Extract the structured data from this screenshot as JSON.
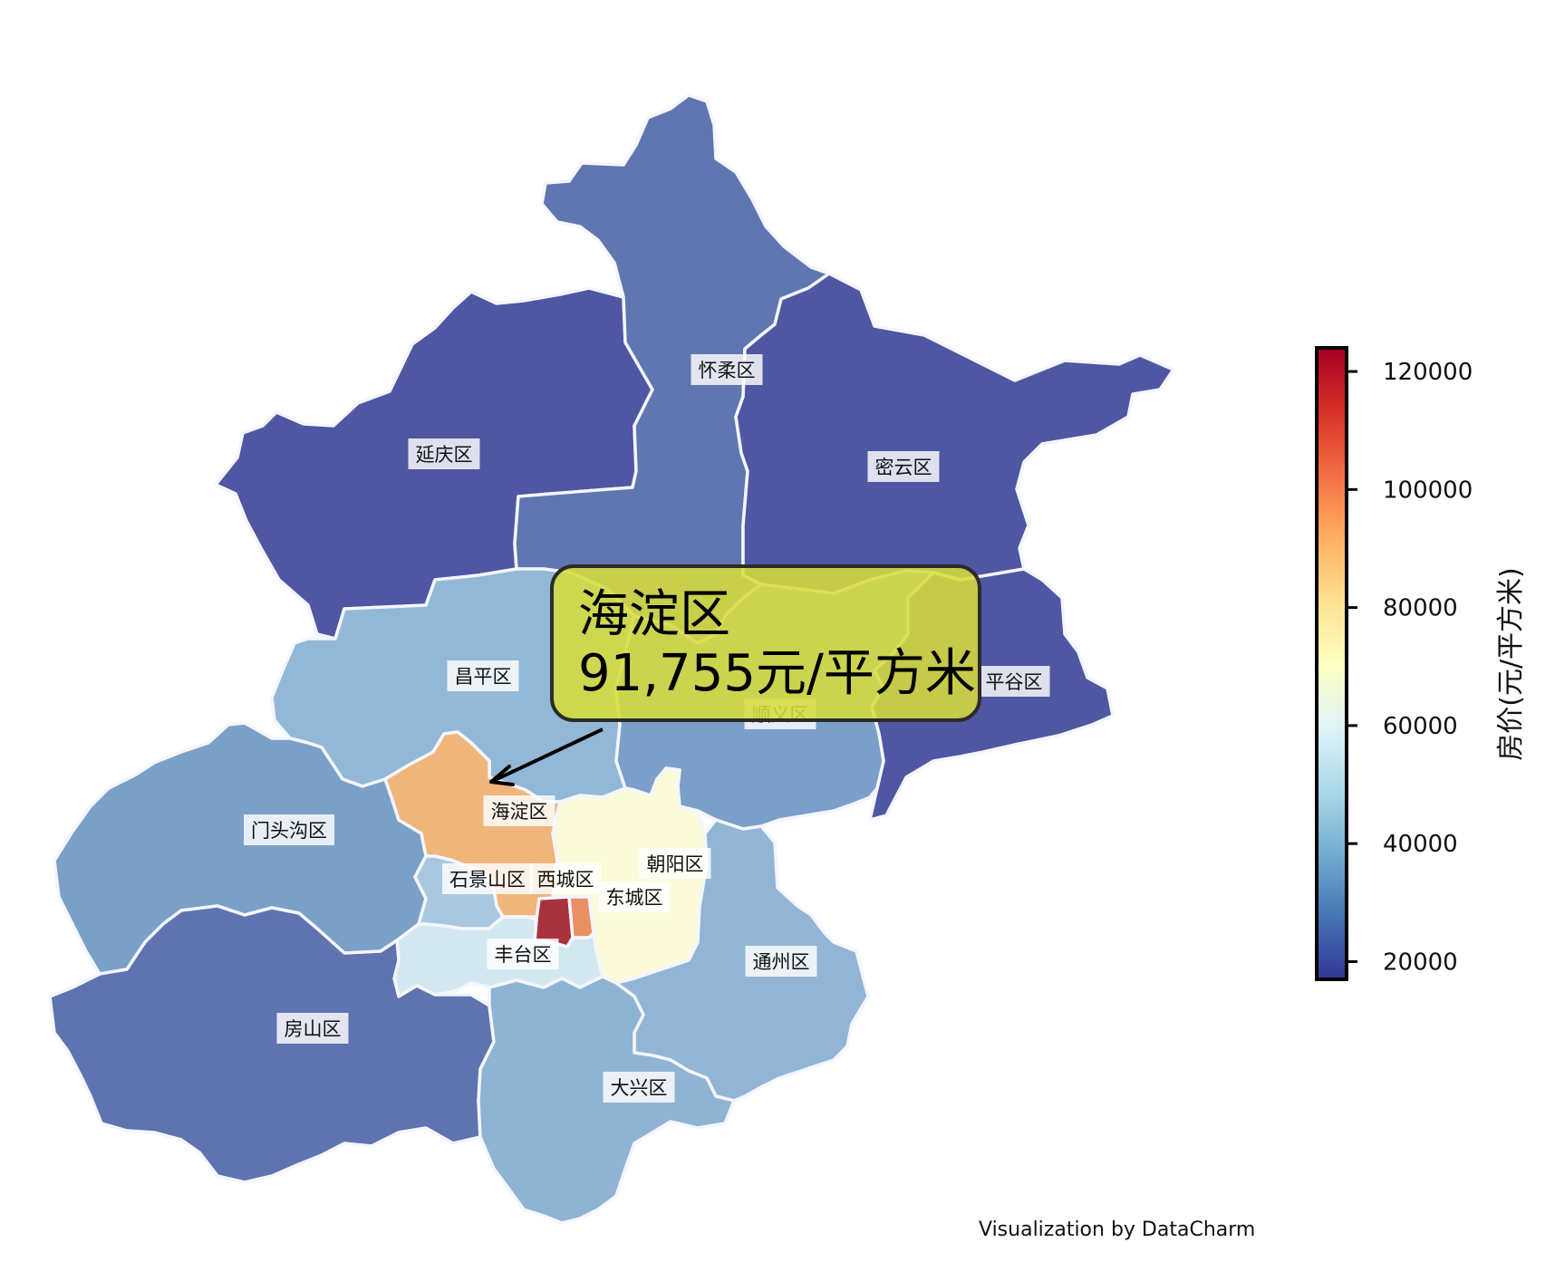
{
  "map": {
    "region": "北京",
    "districts": [
      {
        "id": "yanqing",
        "name": "延庆区",
        "color": "#4f56a2"
      },
      {
        "id": "huairou",
        "name": "怀柔区",
        "color": "#5f76b1"
      },
      {
        "id": "miyun",
        "name": "密云区",
        "color": "#4f56a2"
      },
      {
        "id": "pinggu",
        "name": "平谷区",
        "color": "#4f56a2"
      },
      {
        "id": "changping",
        "name": "昌平区",
        "color": "#93b8d6"
      },
      {
        "id": "shunyi",
        "name": "顺义区",
        "color": "#7b9fc9"
      },
      {
        "id": "mentougou",
        "name": "门头沟区",
        "color": "#7aa0c8"
      },
      {
        "id": "haidian",
        "name": "海淀区",
        "color": "#efb57a"
      },
      {
        "id": "chaoyang",
        "name": "朝阳区",
        "color": "#fbfbd9"
      },
      {
        "id": "shijingshan",
        "name": "石景山区",
        "color": "#a9c8e0"
      },
      {
        "id": "xicheng",
        "name": "西城区",
        "color": "#a8333f"
      },
      {
        "id": "dongcheng",
        "name": "东城区",
        "color": "#e88f63"
      },
      {
        "id": "fengtai",
        "name": "丰台区",
        "color": "#d3e7f0"
      },
      {
        "id": "tongzhou",
        "name": "通州区",
        "color": "#93b5d5"
      },
      {
        "id": "fangshan",
        "name": "房山区",
        "color": "#5e73b0"
      },
      {
        "id": "daxing",
        "name": "大兴区",
        "color": "#8fb3d3"
      }
    ]
  },
  "callout": {
    "line1": "海淀区",
    "line2": "91,755元/平方米",
    "fill": "#d6dc3c",
    "border": "#2b2b2b"
  },
  "colorbar": {
    "title": "房价(元/平方米)",
    "range": [
      17000,
      124000
    ],
    "ticks": [
      "120000",
      "100000",
      "80000",
      "60000",
      "40000",
      "20000"
    ],
    "tick_values": [
      120000,
      100000,
      80000,
      60000,
      40000,
      20000
    ],
    "colormap": [
      "#313695",
      "#4575b4",
      "#74add1",
      "#abd9e9",
      "#e0f3f8",
      "#ffffbf",
      "#fee090",
      "#fdae61",
      "#f46d43",
      "#d73027",
      "#a50026"
    ]
  },
  "credit": "Visualization by DataCharm"
}
